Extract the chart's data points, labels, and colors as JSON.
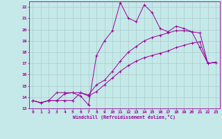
{
  "xlabel": "Windchill (Refroidissement éolien,°C)",
  "background_color": "#c5e8e8",
  "grid_color": "#aacccc",
  "line_color": "#990099",
  "xlim": [
    -0.5,
    23.5
  ],
  "ylim": [
    13,
    22.5
  ],
  "xticks": [
    0,
    1,
    2,
    3,
    4,
    5,
    6,
    7,
    8,
    9,
    10,
    11,
    12,
    13,
    14,
    15,
    16,
    17,
    18,
    19,
    20,
    21,
    22,
    23
  ],
  "yticks": [
    13,
    14,
    15,
    16,
    17,
    18,
    19,
    20,
    21,
    22
  ],
  "line1_x": [
    0,
    1,
    2,
    3,
    4,
    5,
    6,
    7,
    8,
    9,
    10,
    11,
    12,
    13,
    14,
    15,
    16,
    17,
    18,
    19,
    20,
    21,
    22,
    23
  ],
  "line1_y": [
    13.7,
    13.5,
    13.7,
    13.7,
    13.7,
    13.7,
    14.4,
    14.1,
    14.5,
    15.1,
    15.7,
    16.3,
    16.8,
    17.2,
    17.5,
    17.7,
    17.9,
    18.1,
    18.4,
    18.6,
    18.8,
    18.9,
    17.0,
    17.1
  ],
  "line2_x": [
    0,
    1,
    2,
    3,
    4,
    5,
    6,
    7,
    8,
    9,
    10,
    11,
    12,
    13,
    14,
    15,
    16,
    17,
    18,
    19,
    20,
    21,
    22,
    23
  ],
  "line2_y": [
    13.7,
    13.5,
    13.7,
    13.7,
    14.3,
    14.4,
    14.4,
    14.2,
    15.1,
    15.5,
    16.3,
    17.2,
    18.0,
    18.5,
    19.0,
    19.3,
    19.5,
    19.7,
    19.9,
    19.9,
    19.8,
    18.4,
    17.0,
    17.1
  ],
  "line3_x": [
    0,
    1,
    2,
    3,
    4,
    5,
    6,
    7,
    8,
    9,
    10,
    11,
    12,
    13,
    14,
    15,
    16,
    17,
    18,
    19,
    20,
    21,
    22,
    23
  ],
  "line3_y": [
    13.7,
    13.5,
    13.7,
    14.4,
    14.4,
    14.4,
    14.1,
    13.3,
    17.7,
    19.0,
    19.9,
    22.4,
    21.0,
    20.7,
    22.2,
    21.5,
    20.1,
    19.8,
    20.3,
    20.1,
    19.8,
    19.7,
    17.0,
    17.1
  ]
}
